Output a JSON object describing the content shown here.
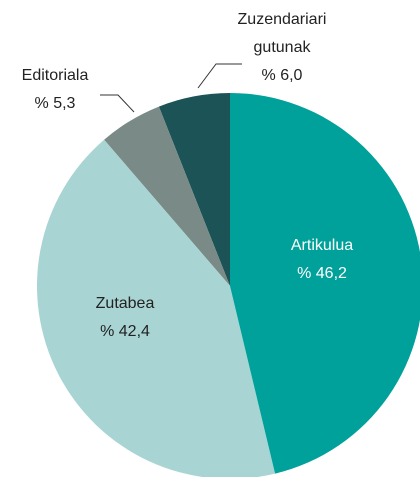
{
  "chart_data": {
    "type": "pie",
    "categories": [
      "Artikulua",
      "Zutabea",
      "Editoriala",
      "Zuzendariari gutunak"
    ],
    "values": [
      46.2,
      42.4,
      5.3,
      6.0
    ],
    "value_labels": [
      "% 46,2",
      "% 42,4",
      "% 5,3",
      "% 6,0"
    ],
    "colors": [
      "#00a19a",
      "#a8d5d3",
      "#7a8b87",
      "#1b5356"
    ]
  }
}
